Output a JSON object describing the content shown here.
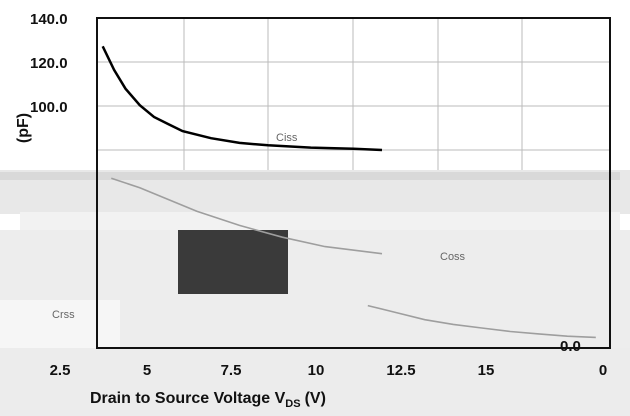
{
  "chart_data": {
    "type": "line",
    "title": "",
    "xlabel": "Drain to Source Voltage V",
    "xlabel_sub": "DS",
    "xlabel_unit": "(V)",
    "ylabel": "(pF)",
    "x_tick_labels": [
      "2.5",
      "5",
      "7.5",
      "10",
      "12.5",
      "15",
      "0"
    ],
    "y_tick_labels": [
      "140.0",
      "120.0",
      "100.0",
      "0.0"
    ],
    "ylim": [
      0,
      140
    ],
    "grid": true,
    "series_labels": [
      "Coss",
      "Crss",
      "Ciss"
    ],
    "series": [
      {
        "name": "",
        "x": [
          0.2,
          0.6,
          1.0,
          1.5,
          2.0,
          2.5,
          3.0,
          4.0,
          5.0,
          6.0,
          7.5,
          9.0,
          10.0
        ],
        "y": [
          128,
          118,
          110,
          103,
          98,
          95,
          92,
          89,
          87,
          86,
          85,
          84.5,
          84
        ]
      },
      {
        "name": "",
        "x": [
          9.5,
          10.5,
          11.5,
          12.5,
          13.5,
          14.5,
          15.5,
          16.5,
          17.5
        ],
        "y": [
          18,
          15,
          12,
          10,
          8.5,
          7,
          6,
          5,
          4.5
        ]
      },
      {
        "name": "",
        "x": [
          0.5,
          1.5,
          2.5,
          3.5,
          5.0,
          6.5,
          8.0,
          10.0
        ],
        "y": [
          72,
          68,
          63,
          58,
          52,
          47,
          43,
          40
        ]
      }
    ],
    "colors": {
      "axis": "#111111",
      "grid": "#bbbbbb",
      "line": "#000000",
      "noise": "#9e9e9e"
    }
  }
}
